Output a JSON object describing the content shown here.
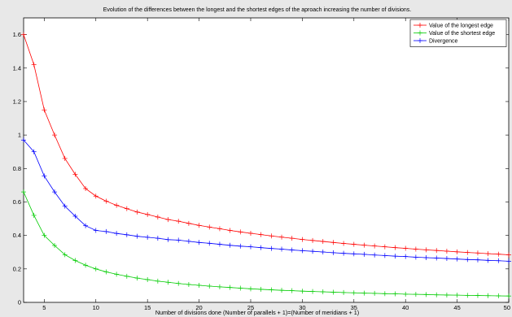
{
  "chart_data": {
    "type": "line",
    "title": "Evolution of the differences between the longest and the shortest edges of the aproach increasing the number of divisions.",
    "xlabel": "Number of divisions done (Number of parallels + 1)=(Number of meridians + 1)",
    "ylabel": "",
    "xlim": [
      3,
      50
    ],
    "ylim": [
      0,
      1.7
    ],
    "xticks": [
      5,
      10,
      15,
      20,
      25,
      30,
      35,
      40,
      45,
      50
    ],
    "yticks": [
      0,
      0.2,
      0.4,
      0.6,
      0.8,
      1,
      1.2,
      1.4,
      1.6
    ],
    "ytick_labels": [
      "0",
      "0.2",
      "0.4",
      "0.6",
      "0.8",
      "1",
      "1.2",
      "1.4",
      "1.6"
    ],
    "grid": false,
    "legend_position": "top-right",
    "x": [
      3,
      4,
      5,
      6,
      7,
      8,
      9,
      10,
      11,
      12,
      13,
      14,
      15,
      16,
      17,
      18,
      19,
      20,
      21,
      22,
      23,
      24,
      25,
      26,
      27,
      28,
      29,
      30,
      31,
      32,
      33,
      34,
      35,
      36,
      37,
      38,
      39,
      40,
      41,
      42,
      43,
      44,
      45,
      46,
      47,
      48,
      49,
      50
    ],
    "series": [
      {
        "name": "Value of the longest edge",
        "color": "#ff0000",
        "values": [
          1.6,
          1.42,
          1.15,
          1.0,
          0.86,
          0.765,
          0.68,
          0.635,
          0.605,
          0.58,
          0.56,
          0.54,
          0.525,
          0.51,
          0.495,
          0.485,
          0.472,
          0.46,
          0.45,
          0.44,
          0.43,
          0.421,
          0.413,
          0.405,
          0.397,
          0.39,
          0.383,
          0.376,
          0.37,
          0.364,
          0.358,
          0.352,
          0.347,
          0.342,
          0.337,
          0.332,
          0.327,
          0.323,
          0.318,
          0.314,
          0.31,
          0.306,
          0.302,
          0.298,
          0.295,
          0.291,
          0.288,
          0.284
        ]
      },
      {
        "name": "Value of the shortest edge",
        "color": "#00cc00",
        "values": [
          0.66,
          0.52,
          0.4,
          0.34,
          0.285,
          0.25,
          0.222,
          0.2,
          0.182,
          0.168,
          0.156,
          0.145,
          0.136,
          0.127,
          0.12,
          0.113,
          0.107,
          0.102,
          0.097,
          0.093,
          0.089,
          0.085,
          0.081,
          0.078,
          0.075,
          0.072,
          0.07,
          0.067,
          0.065,
          0.063,
          0.061,
          0.059,
          0.057,
          0.055,
          0.054,
          0.052,
          0.051,
          0.049,
          0.048,
          0.047,
          0.045,
          0.044,
          0.043,
          0.042,
          0.041,
          0.04,
          0.039,
          0.038
        ]
      },
      {
        "name": "Divergence",
        "color": "#0000ff",
        "values": [
          0.97,
          0.9,
          0.755,
          0.66,
          0.575,
          0.515,
          0.458,
          0.43,
          0.423,
          0.412,
          0.404,
          0.395,
          0.389,
          0.383,
          0.375,
          0.372,
          0.365,
          0.358,
          0.353,
          0.347,
          0.341,
          0.336,
          0.332,
          0.327,
          0.322,
          0.318,
          0.313,
          0.309,
          0.305,
          0.301,
          0.297,
          0.293,
          0.29,
          0.287,
          0.283,
          0.28,
          0.276,
          0.274,
          0.27,
          0.267,
          0.265,
          0.262,
          0.259,
          0.256,
          0.254,
          0.251,
          0.249,
          0.246
        ]
      }
    ]
  }
}
